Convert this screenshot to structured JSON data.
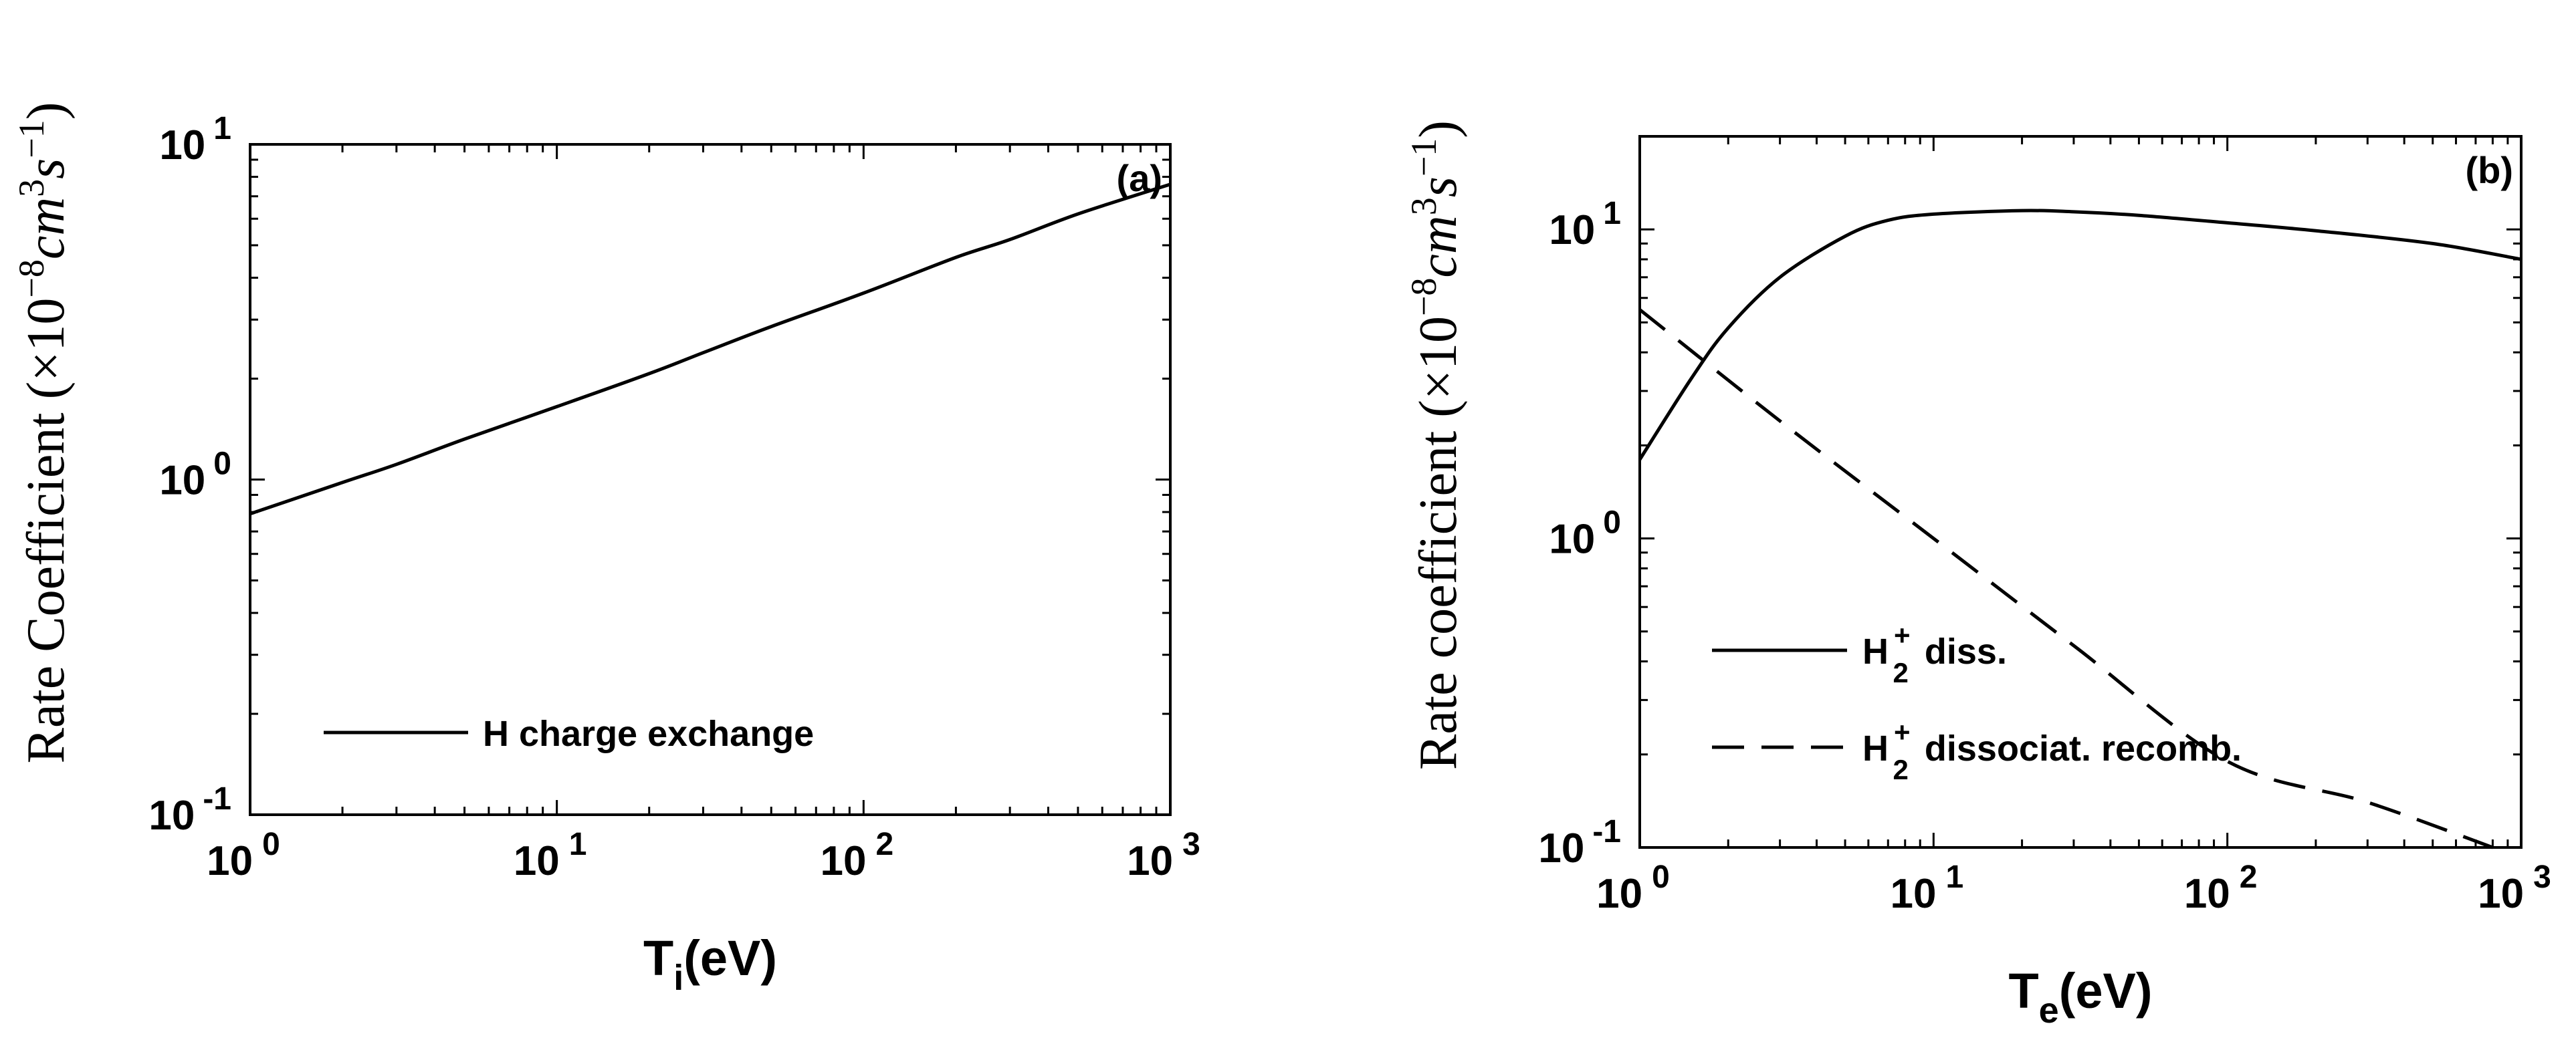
{
  "chart_data": [
    {
      "id": "a",
      "type": "line",
      "panel_label": "(a)",
      "xlabel": {
        "main": "T",
        "sub": "i",
        "rest": "(eV)"
      },
      "ylabel": {
        "text": "Rate Coefficient (×10",
        "exp1": "−8",
        "unit": "cm",
        "exp2": "3",
        "unit2": "s",
        "exp3": "−1",
        "close": ")"
      },
      "xscale": "log",
      "yscale": "log",
      "xlim": [
        1,
        1000
      ],
      "ylim": [
        0.1,
        10
      ],
      "xticks": [
        {
          "base": "10",
          "exp": "0"
        },
        {
          "base": "10",
          "exp": "1"
        },
        {
          "base": "10",
          "exp": "2"
        },
        {
          "base": "10",
          "exp": "3"
        }
      ],
      "yticks": [
        {
          "base": "10",
          "exp": "-1"
        },
        {
          "base": "10",
          "exp": "0"
        },
        {
          "base": "10",
          "exp": "1"
        }
      ],
      "legend_position": "lower-left",
      "series": [
        {
          "name": "H charge exchange",
          "style": "solid",
          "x": [
            1,
            2,
            3,
            5,
            10,
            20,
            30,
            50,
            100,
            200,
            300,
            500,
            1000
          ],
          "y": [
            0.79,
            0.98,
            1.11,
            1.32,
            1.65,
            2.07,
            2.39,
            2.86,
            3.6,
            4.6,
            5.2,
            6.2,
            7.6
          ]
        }
      ]
    },
    {
      "id": "b",
      "type": "line",
      "panel_label": "(b)",
      "xlabel": {
        "main": "T",
        "sub": "e",
        "rest": "(eV)"
      },
      "ylabel": {
        "text": "Rate coefficient (×10",
        "exp1": "−8",
        "unit": "cm",
        "exp2": "3",
        "unit2": "s",
        "exp3": "−1",
        "close": ")"
      },
      "xscale": "log",
      "yscale": "log",
      "xlim": [
        1,
        1000
      ],
      "ylim": [
        0.1,
        20
      ],
      "xticks": [
        {
          "base": "10",
          "exp": "0"
        },
        {
          "base": "10",
          "exp": "1"
        },
        {
          "base": "10",
          "exp": "2"
        },
        {
          "base": "10",
          "exp": "3"
        }
      ],
      "yticks": [
        {
          "base": "10",
          "exp": "-1"
        },
        {
          "base": "10",
          "exp": "0"
        },
        {
          "base": "10",
          "exp": "1"
        }
      ],
      "legend_position": "lower-left",
      "series": [
        {
          "name": "H2+ diss.",
          "legend": {
            "base": "H",
            "sup": "+",
            "sub": "2",
            "rest": "diss."
          },
          "style": "solid",
          "x": [
            1,
            1.5,
            2,
            3,
            5,
            7,
            10,
            20,
            30,
            50,
            100,
            200,
            500,
            1000
          ],
          "y": [
            1.8,
            3.3,
            4.8,
            7.0,
            9.5,
            10.7,
            11.2,
            11.5,
            11.4,
            11.1,
            10.5,
            9.9,
            9.0,
            8.0
          ]
        },
        {
          "name": "H2+ dissociat. recomb.",
          "legend": {
            "base": "H",
            "sup": "+",
            "sub": "2",
            "rest": "dissociat. recomb."
          },
          "style": "dashed",
          "x": [
            1,
            3,
            10,
            30,
            100,
            300,
            800
          ],
          "y": [
            5.5,
            2.4,
            1.0,
            0.45,
            0.19,
            0.14,
            0.1
          ]
        }
      ]
    }
  ]
}
